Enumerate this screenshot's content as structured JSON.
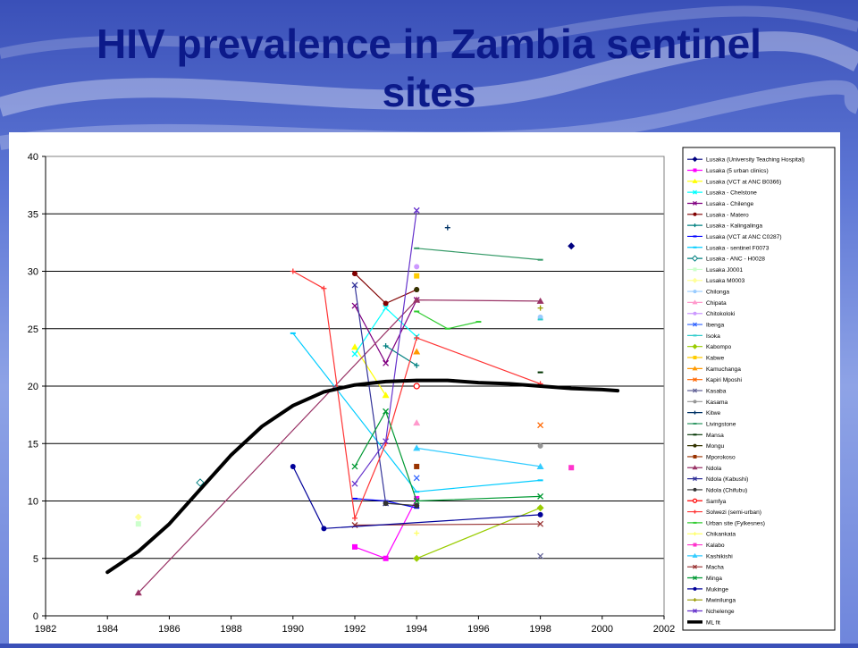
{
  "slide": {
    "title_line1": "HIV prevalence in Zambia sentinel",
    "title_line2": "sites"
  },
  "colors": {
    "background": "#5f78d6",
    "title": "#0c1a8a",
    "fit_line": "#000000",
    "gridline": "#000000"
  },
  "chart_data": {
    "type": "line",
    "title": "",
    "xlabel": "",
    "ylabel": "",
    "xlim": [
      1982,
      2002
    ],
    "ylim": [
      0,
      40
    ],
    "x_ticks": [
      1982,
      1984,
      1986,
      1988,
      1990,
      1992,
      1994,
      1996,
      1998,
      2000,
      2002
    ],
    "y_ticks": [
      0,
      5,
      10,
      15,
      20,
      25,
      30,
      35,
      40
    ],
    "grid": "horizontal",
    "legend_position": "right",
    "series": [
      {
        "name": "Lusaka (University Teaching Hospital)",
        "color": "#000080",
        "marker": "diamond",
        "points": [
          [
            1999,
            32.2
          ]
        ]
      },
      {
        "name": "Lusaka (5 urban clinics)",
        "color": "#ff00ff",
        "marker": "square",
        "points": [
          [
            1992,
            6.0
          ],
          [
            1993,
            5.0
          ],
          [
            1994,
            10.2
          ]
        ]
      },
      {
        "name": "Lusaka (VCT at ANC B0366)",
        "color": "#ffff00",
        "marker": "triangle",
        "points": [
          [
            1992,
            23.4
          ],
          [
            1993,
            19.2
          ]
        ]
      },
      {
        "name": "Lusaka - Chelstone",
        "color": "#00ffff",
        "marker": "x",
        "points": [
          [
            1992,
            22.8
          ],
          [
            1993,
            26.8
          ],
          [
            1994,
            24.3
          ]
        ]
      },
      {
        "name": "Lusaka - Chilenge",
        "color": "#800080",
        "marker": "x",
        "points": [
          [
            1992,
            27.0
          ],
          [
            1993,
            22.0
          ],
          [
            1994,
            27.5
          ]
        ]
      },
      {
        "name": "Lusaka - Matero",
        "color": "#800000",
        "marker": "circle",
        "points": [
          [
            1992,
            29.8
          ],
          [
            1993,
            27.2
          ],
          [
            1994,
            28.4
          ]
        ]
      },
      {
        "name": "Lusaka - Kalingalinga",
        "color": "#008080",
        "marker": "plus",
        "points": [
          [
            1993,
            23.5
          ],
          [
            1994,
            21.8
          ]
        ]
      },
      {
        "name": "Lusaka (VCT at ANC C0287)",
        "color": "#0000ff",
        "marker": "dash",
        "points": [
          [
            1992,
            10.2
          ],
          [
            1993,
            10.0
          ],
          [
            1994,
            9.4
          ]
        ]
      },
      {
        "name": "Lusaka - sentinel F0073",
        "color": "#00ccff",
        "marker": "dash",
        "points": [
          [
            1990,
            24.6
          ],
          [
            1994,
            10.8
          ],
          [
            1998,
            11.8
          ]
        ]
      },
      {
        "name": "Lusaka - ANC - H0028",
        "color": "#008080",
        "marker": "open-diamond",
        "points": [
          [
            1987,
            11.6
          ]
        ]
      },
      {
        "name": "Lusaka J0001",
        "color": "#ccffcc",
        "marker": "square",
        "points": [
          [
            1985,
            8.0
          ]
        ]
      },
      {
        "name": "Lusaka M0003",
        "color": "#ffff99",
        "marker": "diamond",
        "points": [
          [
            1985,
            8.6
          ]
        ]
      },
      {
        "name": "Chilonga",
        "color": "#99ccff",
        "marker": "circle",
        "points": [
          [
            1998,
            26.0
          ]
        ]
      },
      {
        "name": "Chipata",
        "color": "#ff99cc",
        "marker": "triangle",
        "points": [
          [
            1994,
            16.8
          ]
        ]
      },
      {
        "name": "Chitokoloki",
        "color": "#cc99ff",
        "marker": "circle",
        "points": [
          [
            1994,
            30.4
          ]
        ]
      },
      {
        "name": "Ibenga",
        "color": "#3366ff",
        "marker": "x",
        "points": [
          [
            1994,
            12.0
          ]
        ]
      },
      {
        "name": "Isoka",
        "color": "#33cccc",
        "marker": "dash",
        "points": [
          [
            1998,
            25.8
          ]
        ]
      },
      {
        "name": "Kabompo",
        "color": "#99cc00",
        "marker": "diamond",
        "points": [
          [
            1994,
            5.0
          ],
          [
            1998,
            9.4
          ]
        ]
      },
      {
        "name": "Kabwe",
        "color": "#ffcc00",
        "marker": "square",
        "points": [
          [
            1994,
            29.6
          ]
        ]
      },
      {
        "name": "Kamuchanga",
        "color": "#ff9900",
        "marker": "triangle",
        "points": [
          [
            1994,
            23.0
          ]
        ]
      },
      {
        "name": "Kapiri Mposhi",
        "color": "#ff6600",
        "marker": "x",
        "points": [
          [
            1998,
            16.6
          ]
        ]
      },
      {
        "name": "Kasaba",
        "color": "#666699",
        "marker": "x",
        "points": [
          [
            1998,
            5.2
          ]
        ]
      },
      {
        "name": "Kasama",
        "color": "#969696",
        "marker": "circle",
        "points": [
          [
            1998,
            14.8
          ]
        ]
      },
      {
        "name": "Kitwe",
        "color": "#003366",
        "marker": "plus",
        "points": [
          [
            1995,
            33.8
          ]
        ]
      },
      {
        "name": "Livingstone",
        "color": "#339966",
        "marker": "dash",
        "points": [
          [
            1994,
            32.0
          ],
          [
            1998,
            31.0
          ]
        ]
      },
      {
        "name": "Mansa",
        "color": "#003300",
        "marker": "dash",
        "points": [
          [
            1998,
            21.2
          ]
        ]
      },
      {
        "name": "Mongu",
        "color": "#333300",
        "marker": "circle",
        "points": [
          [
            1994,
            28.4
          ]
        ]
      },
      {
        "name": "Mporokoso",
        "color": "#993300",
        "marker": "square",
        "points": [
          [
            1994,
            13.0
          ]
        ]
      },
      {
        "name": "Ndola",
        "color": "#993366",
        "marker": "triangle",
        "points": [
          [
            1985,
            2.0
          ],
          [
            1994,
            27.5
          ],
          [
            1998,
            27.4
          ]
        ]
      },
      {
        "name": "Ndola (Kabushi)",
        "color": "#333399",
        "marker": "x",
        "points": [
          [
            1992,
            28.8
          ],
          [
            1993,
            9.8
          ]
        ]
      },
      {
        "name": "Ndola (Chifubu)",
        "color": "#333333",
        "marker": "circle",
        "points": [
          [
            1993,
            9.8
          ],
          [
            1994,
            9.6
          ]
        ]
      },
      {
        "name": "Samfya",
        "color": "#ff0000",
        "marker": "open-circle",
        "points": [
          [
            1994,
            20.0
          ]
        ]
      },
      {
        "name": "Solwezi (semi-urban)",
        "color": "#ff3333",
        "marker": "plus",
        "points": [
          [
            1990,
            30.0
          ],
          [
            1991,
            28.5
          ],
          [
            1992,
            8.5
          ],
          [
            1993,
            15.0
          ],
          [
            1994,
            24.2
          ],
          [
            1998,
            20.2
          ]
        ]
      },
      {
        "name": "Urban site (Fylkesnes)",
        "color": "#33cc33",
        "marker": "dash",
        "points": [
          [
            1994,
            26.5
          ],
          [
            1995,
            25.0
          ],
          [
            1996,
            25.6
          ]
        ]
      },
      {
        "name": "Chikankata",
        "color": "#ffff66",
        "marker": "plus",
        "points": [
          [
            1994,
            7.2
          ]
        ]
      },
      {
        "name": "Kalabo",
        "color": "#ff33cc",
        "marker": "square",
        "points": [
          [
            1999,
            12.9
          ]
        ]
      },
      {
        "name": "Kashikishi",
        "color": "#33ccff",
        "marker": "triangle",
        "points": [
          [
            1994,
            14.6
          ],
          [
            1998,
            13.0
          ]
        ]
      },
      {
        "name": "Macha",
        "color": "#993333",
        "marker": "x",
        "points": [
          [
            1992,
            7.9
          ],
          [
            1998,
            8.0
          ]
        ]
      },
      {
        "name": "Minga",
        "color": "#009933",
        "marker": "x",
        "points": [
          [
            1992,
            13.0
          ],
          [
            1993,
            17.8
          ],
          [
            1994,
            10.0
          ],
          [
            1998,
            10.4
          ]
        ]
      },
      {
        "name": "Mukinge",
        "color": "#000099",
        "marker": "circle",
        "points": [
          [
            1990,
            13.0
          ],
          [
            1991,
            7.6
          ],
          [
            1998,
            8.8
          ]
        ]
      },
      {
        "name": "Mwinilunga",
        "color": "#999900",
        "marker": "plus",
        "points": [
          [
            1998,
            26.8
          ]
        ]
      },
      {
        "name": "Nchelenge",
        "color": "#6633cc",
        "marker": "x",
        "points": [
          [
            1992,
            11.5
          ],
          [
            1993,
            15.2
          ],
          [
            1994,
            35.3
          ]
        ]
      },
      {
        "name": "ML fit",
        "color": "#000000",
        "marker": "none",
        "thick": true,
        "points": [
          [
            1984,
            3.8
          ],
          [
            1985,
            5.6
          ],
          [
            1986,
            8.0
          ],
          [
            1987,
            11.0
          ],
          [
            1988,
            14.0
          ],
          [
            1989,
            16.5
          ],
          [
            1990,
            18.3
          ],
          [
            1991,
            19.5
          ],
          [
            1992,
            20.1
          ],
          [
            1993,
            20.4
          ],
          [
            1994,
            20.5
          ],
          [
            1995,
            20.5
          ],
          [
            1996,
            20.3
          ],
          [
            1997,
            20.2
          ],
          [
            1998,
            20.0
          ],
          [
            1999,
            19.8
          ],
          [
            2000,
            19.7
          ],
          [
            2000.5,
            19.6
          ]
        ]
      }
    ]
  }
}
